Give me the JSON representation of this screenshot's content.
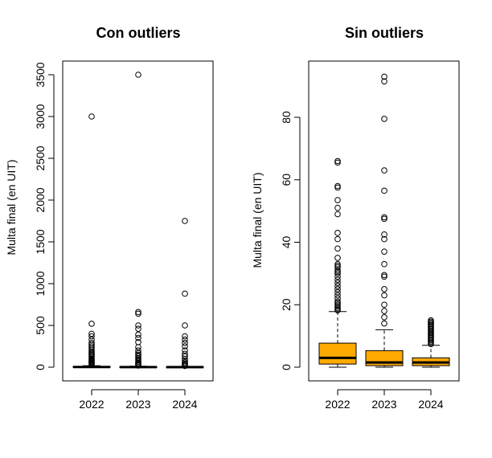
{
  "chart_data": [
    {
      "type": "box",
      "title": "Con outliers",
      "ylabel": "Multa final (en UIT)",
      "xlabel": "",
      "ylim": [
        0,
        3500
      ],
      "yticks": [
        0,
        500,
        1000,
        1500,
        2000,
        2500,
        3000,
        3500
      ],
      "categories": [
        "2022",
        "2023",
        "2024"
      ],
      "box_color": "#ffffff",
      "boxes": [
        {
          "category": "2022",
          "q1": 1,
          "median": 3,
          "q3": 8,
          "whisker_low": 0,
          "whisker_high": 18,
          "outliers": [
            3000,
            520,
            400,
            370,
            330,
            290,
            270,
            250,
            230,
            210,
            190,
            175,
            160,
            145,
            130,
            115,
            100,
            90,
            80,
            70,
            60,
            50,
            40,
            30
          ]
        },
        {
          "category": "2023",
          "q1": 0.5,
          "median": 1.5,
          "q3": 5,
          "whisker_low": 0,
          "whisker_high": 12,
          "outliers": [
            3500,
            660,
            640,
            500,
            460,
            390,
            350,
            300,
            240,
            200,
            170,
            150,
            130,
            110,
            95,
            80,
            65,
            50,
            40,
            30,
            20
          ]
        },
        {
          "category": "2024",
          "q1": 0.5,
          "median": 1.5,
          "q3": 3,
          "whisker_low": 0,
          "whisker_high": 7,
          "outliers": [
            1750,
            880,
            500,
            370,
            330,
            290,
            250,
            200,
            160,
            130,
            100,
            80,
            60,
            45,
            30,
            20,
            15
          ]
        }
      ]
    },
    {
      "type": "box",
      "title": "Sin outliers",
      "ylabel": "Multa final (en UIT)",
      "xlabel": "",
      "ylim": [
        0,
        93
      ],
      "yticks": [
        0,
        20,
        40,
        60,
        80
      ],
      "categories": [
        "2022",
        "2023",
        "2024"
      ],
      "box_color": "#ffaa00",
      "boxes": [
        {
          "category": "2022",
          "q1": 1,
          "median": 3,
          "q3": 7.7,
          "whisker_low": 0,
          "whisker_high": 17.8,
          "outliers": [
            66,
            65.5,
            58,
            57.5,
            53.5,
            51,
            49,
            43,
            41,
            38,
            35,
            33,
            32.5,
            32,
            31,
            30.5,
            30,
            29,
            28,
            27,
            26,
            25,
            24,
            23,
            22,
            21,
            20.5,
            20,
            19.5,
            19,
            18.5,
            18.2
          ]
        },
        {
          "category": "2023",
          "q1": 0.5,
          "median": 1.5,
          "q3": 5.3,
          "whisker_low": 0,
          "whisker_high": 12,
          "outliers": [
            93,
            91.5,
            79.5,
            63,
            56.5,
            48,
            47.5,
            42.5,
            41,
            37,
            33,
            29.5,
            29,
            25,
            23,
            20,
            18,
            16,
            14
          ]
        },
        {
          "category": "2024",
          "q1": 0.5,
          "median": 1.5,
          "q3": 3,
          "whisker_low": 0,
          "whisker_high": 7,
          "outliers": [
            15,
            14.6,
            14.2,
            13.8,
            13.4,
            13,
            12.6,
            12.2,
            11.8,
            11.4,
            11,
            10.6,
            10.2,
            9.8,
            9.4,
            9,
            8.6,
            8.2,
            7.8,
            7.4
          ]
        }
      ]
    }
  ]
}
